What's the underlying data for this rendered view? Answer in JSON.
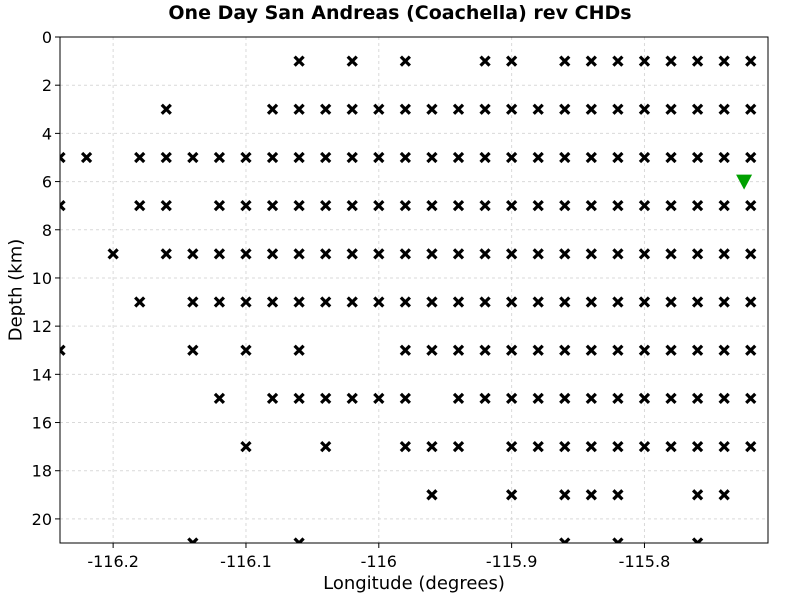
{
  "chart_data": {
    "type": "scatter",
    "title": "One Day San Andreas (Coachella) rev CHDs",
    "xlabel": "Longitude (degrees)",
    "ylabel": "Depth (km)",
    "xlim": [
      -116.24,
      -115.707
    ],
    "ylim": [
      0,
      21
    ],
    "y_inverted": true,
    "grid": true,
    "xticks": [
      -116.2,
      -116.1,
      -116.0,
      -115.9,
      -115.8
    ],
    "xtick_labels": [
      "-116.2",
      "-116.1",
      "-116",
      "-115.9",
      "-115.8"
    ],
    "yticks": [
      0,
      2,
      4,
      6,
      8,
      10,
      12,
      14,
      16,
      18,
      20
    ],
    "ytick_labels": [
      "0",
      "2",
      "4",
      "6",
      "8",
      "10",
      "12",
      "14",
      "16",
      "18",
      "20"
    ],
    "series": [
      {
        "marker": "x",
        "color": "#000000",
        "rows": [
          {
            "depth": 1,
            "lons": [
              -116.06,
              -116.02,
              -115.98,
              -115.92,
              -115.9,
              -115.86,
              -115.84,
              -115.82,
              -115.8,
              -115.78,
              -115.76,
              -115.74,
              -115.72
            ]
          },
          {
            "depth": 3,
            "lons": [
              -116.16,
              -116.08,
              -116.06,
              -116.04,
              -116.02,
              -116.0,
              -115.98,
              -115.96,
              -115.94,
              -115.92,
              -115.9,
              -115.88,
              -115.86,
              -115.84,
              -115.82,
              -115.8,
              -115.78,
              -115.76,
              -115.74,
              -115.72
            ]
          },
          {
            "depth": 5,
            "lons": [
              -116.24,
              -116.22,
              -116.18,
              -116.16,
              -116.14,
              -116.12,
              -116.1,
              -116.08,
              -116.06,
              -116.04,
              -116.02,
              -116.0,
              -115.98,
              -115.96,
              -115.94,
              -115.92,
              -115.9,
              -115.88,
              -115.86,
              -115.84,
              -115.82,
              -115.8,
              -115.78,
              -115.76,
              -115.74,
              -115.72
            ]
          },
          {
            "depth": 7,
            "lons": [
              -116.24,
              -116.18,
              -116.16,
              -116.12,
              -116.1,
              -116.08,
              -116.06,
              -116.04,
              -116.02,
              -116.0,
              -115.98,
              -115.96,
              -115.94,
              -115.92,
              -115.9,
              -115.88,
              -115.86,
              -115.84,
              -115.82,
              -115.8,
              -115.78,
              -115.76,
              -115.74,
              -115.72
            ]
          },
          {
            "depth": 9,
            "lons": [
              -116.2,
              -116.16,
              -116.14,
              -116.12,
              -116.1,
              -116.08,
              -116.06,
              -116.04,
              -116.02,
              -116.0,
              -115.98,
              -115.96,
              -115.94,
              -115.92,
              -115.9,
              -115.88,
              -115.86,
              -115.84,
              -115.82,
              -115.8,
              -115.78,
              -115.76,
              -115.74,
              -115.72
            ]
          },
          {
            "depth": 11,
            "lons": [
              -116.18,
              -116.14,
              -116.12,
              -116.1,
              -116.08,
              -116.06,
              -116.04,
              -116.02,
              -116.0,
              -115.98,
              -115.96,
              -115.94,
              -115.92,
              -115.9,
              -115.88,
              -115.86,
              -115.84,
              -115.82,
              -115.8,
              -115.78,
              -115.76,
              -115.74,
              -115.72
            ]
          },
          {
            "depth": 13,
            "lons": [
              -116.24,
              -116.14,
              -116.1,
              -116.06,
              -115.98,
              -115.96,
              -115.94,
              -115.92,
              -115.9,
              -115.88,
              -115.86,
              -115.84,
              -115.82,
              -115.8,
              -115.78,
              -115.76,
              -115.74,
              -115.72
            ]
          },
          {
            "depth": 15,
            "lons": [
              -116.12,
              -116.08,
              -116.06,
              -116.04,
              -116.02,
              -116.0,
              -115.98,
              -115.94,
              -115.92,
              -115.9,
              -115.88,
              -115.86,
              -115.84,
              -115.82,
              -115.8,
              -115.78,
              -115.76,
              -115.74,
              -115.72
            ]
          },
          {
            "depth": 17,
            "lons": [
              -116.1,
              -116.04,
              -115.98,
              -115.96,
              -115.94,
              -115.9,
              -115.88,
              -115.86,
              -115.84,
              -115.82,
              -115.8,
              -115.78,
              -115.76,
              -115.74,
              -115.72
            ]
          },
          {
            "depth": 19,
            "lons": [
              -115.96,
              -115.9,
              -115.86,
              -115.84,
              -115.82,
              -115.76,
              -115.74
            ]
          },
          {
            "depth": 21,
            "lons": [
              -116.14,
              -116.06,
              -115.86,
              -115.82,
              -115.76
            ]
          }
        ]
      },
      {
        "marker": "triangle-down",
        "color": "#00a000",
        "points": [
          {
            "x": -115.725,
            "y": 6
          }
        ]
      }
    ]
  }
}
